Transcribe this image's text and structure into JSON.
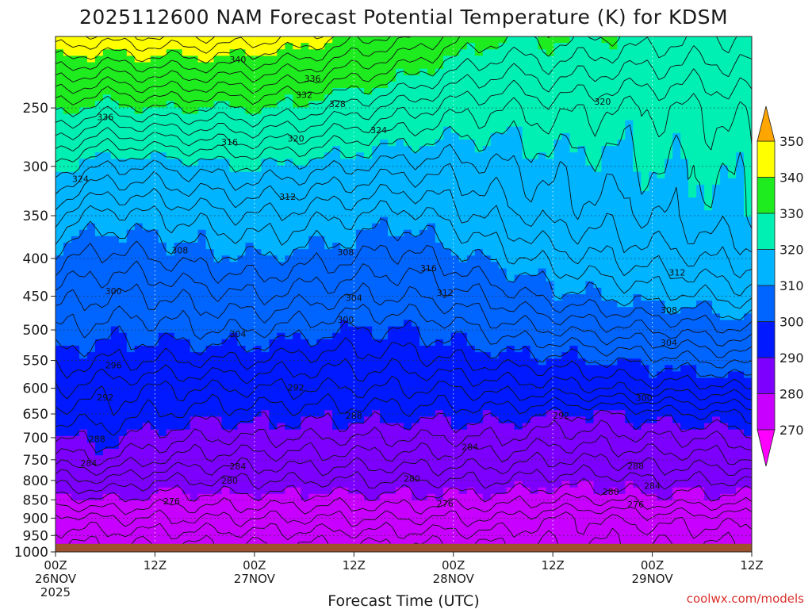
{
  "chart_data": {
    "type": "contour",
    "title": "2025112600 NAM Forecast Potential Temperature (K) for KDSM",
    "xlabel": "Forecast Time (UTC)",
    "ylabel": "",
    "credit": "coolwx.com/models",
    "x_ticks": [
      {
        "hour": 0,
        "line1": "00Z",
        "line2": "26NOV",
        "line3": "2025"
      },
      {
        "hour": 12,
        "line1": "12Z",
        "line2": "",
        "line3": ""
      },
      {
        "hour": 24,
        "line1": "00Z",
        "line2": "27NOV",
        "line3": ""
      },
      {
        "hour": 36,
        "line1": "12Z",
        "line2": "",
        "line3": ""
      },
      {
        "hour": 48,
        "line1": "00Z",
        "line2": "28NOV",
        "line3": ""
      },
      {
        "hour": 60,
        "line1": "12Z",
        "line2": "",
        "line3": ""
      },
      {
        "hour": 72,
        "line1": "00Z",
        "line2": "29NOV",
        "line3": ""
      },
      {
        "hour": 84,
        "line1": "12Z",
        "line2": "",
        "line3": ""
      }
    ],
    "y_ticks": [
      250,
      300,
      350,
      400,
      450,
      500,
      550,
      600,
      650,
      700,
      750,
      800,
      850,
      900,
      950,
      1000
    ],
    "ylim_hpa": [
      200,
      1000
    ],
    "surface_pressure_hpa": 975,
    "xlim_hours": [
      0,
      84
    ],
    "colorbar": {
      "levels": [
        270,
        280,
        290,
        300,
        310,
        320,
        330,
        340,
        350
      ],
      "bands": [
        {
          "min": 260,
          "max": 270,
          "color": "#ff00ff"
        },
        {
          "min": 270,
          "max": 280,
          "color": "#c800ff"
        },
        {
          "min": 280,
          "max": 290,
          "color": "#7d00ff"
        },
        {
          "min": 290,
          "max": 300,
          "color": "#0019ff"
        },
        {
          "min": 300,
          "max": 310,
          "color": "#0064ff"
        },
        {
          "min": 310,
          "max": 320,
          "color": "#00b4ff"
        },
        {
          "min": 320,
          "max": 330,
          "color": "#00f0b4"
        },
        {
          "min": 330,
          "max": 340,
          "color": "#1eec1e"
        },
        {
          "min": 340,
          "max": 350,
          "color": "#ffff00"
        },
        {
          "min": 350,
          "max": 360,
          "color": "#ffa500"
        }
      ],
      "low_color": "#ff00ff",
      "high_color": "#ffa500"
    },
    "ground_color": "#a0522d",
    "contour_interval_k": 2,
    "profile_hours": [
      0,
      6,
      12,
      18,
      24,
      30,
      36,
      42,
      48,
      54,
      60,
      66,
      72,
      78,
      84
    ],
    "profile_pressures_hpa": [
      975,
      900,
      850,
      800,
      750,
      700,
      650,
      600,
      550,
      500,
      450,
      400,
      350,
      300,
      250,
      200
    ],
    "theta_k": [
      [
        272,
        275,
        279,
        283,
        287,
        290,
        293,
        296,
        299,
        302,
        305,
        309,
        314,
        321,
        331,
        344
      ],
      [
        272,
        276,
        280,
        284,
        288,
        291,
        293,
        295,
        298,
        301,
        304,
        307,
        311,
        318,
        329,
        343
      ],
      [
        272,
        276,
        279,
        282,
        286,
        289,
        292,
        294,
        298,
        301,
        304,
        308,
        312,
        318,
        330,
        344
      ],
      [
        272,
        276,
        279,
        282,
        285,
        288,
        291,
        294,
        298,
        302,
        305,
        309,
        313,
        319,
        330,
        344
      ],
      [
        272,
        276,
        279,
        282,
        285,
        288,
        291,
        294,
        298,
        302,
        306,
        310,
        314,
        320,
        330,
        343
      ],
      [
        272,
        276,
        279,
        282,
        285,
        288,
        291,
        294,
        297,
        301,
        305,
        309,
        313,
        319,
        329,
        342
      ],
      [
        272,
        276,
        279,
        282,
        285,
        288,
        291,
        294,
        297,
        300,
        304,
        308,
        312,
        318,
        327,
        339
      ],
      [
        272,
        276,
        279,
        282,
        285,
        288,
        291,
        294,
        297,
        300,
        304,
        307,
        311,
        317,
        325,
        337
      ],
      [
        272,
        276,
        279,
        282,
        285,
        288,
        291,
        294,
        298,
        301,
        305,
        309,
        313,
        317,
        323,
        333
      ],
      [
        272,
        276,
        279,
        282,
        285,
        288,
        291,
        295,
        299,
        303,
        307,
        311,
        315,
        318,
        322,
        330
      ],
      [
        272,
        274,
        278,
        281,
        284,
        287,
        290,
        295,
        299,
        304,
        309,
        313,
        317,
        319,
        323,
        331
      ],
      [
        272,
        274,
        278,
        281,
        284,
        287,
        290,
        296,
        300,
        305,
        310,
        314,
        317,
        319,
        322,
        330
      ],
      [
        272,
        275,
        279,
        282,
        285,
        288,
        291,
        297,
        301,
        306,
        311,
        315,
        318,
        320,
        322,
        329
      ],
      [
        272,
        275,
        279,
        282,
        285,
        288,
        292,
        297,
        302,
        307,
        312,
        316,
        319,
        320,
        322,
        328
      ],
      [
        272,
        275,
        279,
        282,
        286,
        289,
        292,
        298,
        303,
        308,
        313,
        317,
        320,
        321,
        323,
        328
      ]
    ],
    "contour_labels": [
      {
        "text": "340",
        "hour": 22,
        "p": 215
      },
      {
        "text": "336",
        "hour": 31,
        "p": 228
      },
      {
        "text": "332",
        "hour": 30,
        "p": 240
      },
      {
        "text": "336",
        "hour": 6,
        "p": 257
      },
      {
        "text": "328",
        "hour": 34,
        "p": 247
      },
      {
        "text": "324",
        "hour": 39,
        "p": 268
      },
      {
        "text": "320",
        "hour": 66,
        "p": 245
      },
      {
        "text": "316",
        "hour": 21,
        "p": 278
      },
      {
        "text": "320",
        "hour": 29,
        "p": 275
      },
      {
        "text": "324",
        "hour": 3,
        "p": 312
      },
      {
        "text": "312",
        "hour": 28,
        "p": 330
      },
      {
        "text": "308",
        "hour": 15,
        "p": 390
      },
      {
        "text": "308",
        "hour": 35,
        "p": 392
      },
      {
        "text": "316",
        "hour": 45,
        "p": 412
      },
      {
        "text": "312",
        "hour": 75,
        "p": 418
      },
      {
        "text": "300",
        "hour": 7,
        "p": 443
      },
      {
        "text": "312",
        "hour": 47,
        "p": 445
      },
      {
        "text": "304",
        "hour": 36,
        "p": 452
      },
      {
        "text": "300",
        "hour": 35,
        "p": 484
      },
      {
        "text": "308",
        "hour": 74,
        "p": 470
      },
      {
        "text": "304",
        "hour": 22,
        "p": 506
      },
      {
        "text": "304",
        "hour": 74,
        "p": 520
      },
      {
        "text": "296",
        "hour": 7,
        "p": 558
      },
      {
        "text": "292",
        "hour": 29,
        "p": 598
      },
      {
        "text": "292",
        "hour": 6,
        "p": 617
      },
      {
        "text": "300",
        "hour": 71,
        "p": 618
      },
      {
        "text": "288",
        "hour": 36,
        "p": 653
      },
      {
        "text": "292",
        "hour": 61,
        "p": 653
      },
      {
        "text": "288",
        "hour": 5,
        "p": 703
      },
      {
        "text": "284",
        "hour": 50,
        "p": 720
      },
      {
        "text": "284",
        "hour": 4,
        "p": 758
      },
      {
        "text": "284",
        "hour": 22,
        "p": 765
      },
      {
        "text": "288",
        "hour": 70,
        "p": 764
      },
      {
        "text": "280",
        "hour": 21,
        "p": 800
      },
      {
        "text": "280",
        "hour": 43,
        "p": 795
      },
      {
        "text": "284",
        "hour": 72,
        "p": 813
      },
      {
        "text": "280",
        "hour": 67,
        "p": 828
      },
      {
        "text": "276",
        "hour": 14,
        "p": 853
      },
      {
        "text": "276",
        "hour": 47,
        "p": 860
      },
      {
        "text": "276",
        "hour": 70,
        "p": 862
      }
    ]
  }
}
